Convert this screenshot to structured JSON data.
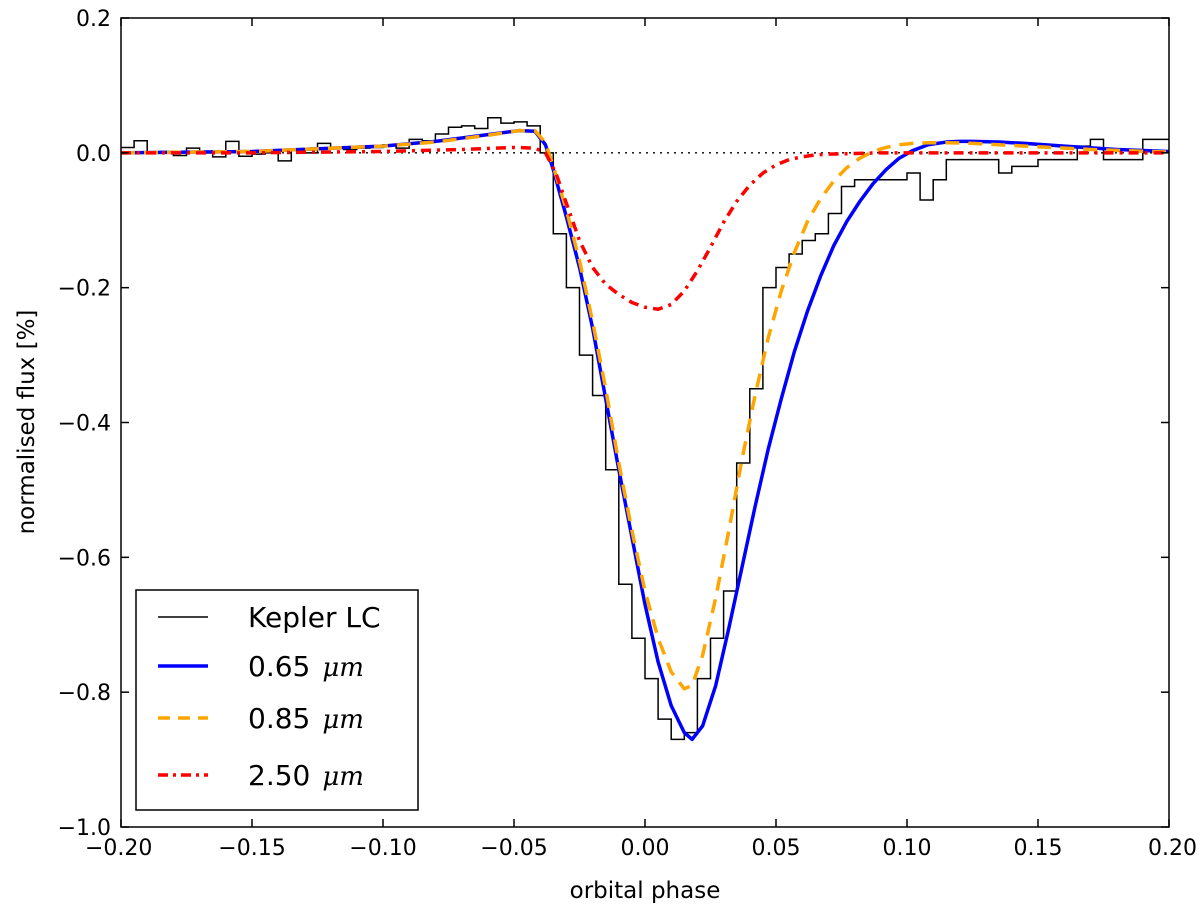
{
  "chart_data": {
    "type": "line",
    "title": "",
    "xlabel": "orbital phase",
    "ylabel": "normalised flux [%]",
    "xlim": [
      -0.2,
      0.2
    ],
    "ylim": [
      -1.0,
      0.2
    ],
    "grid": false,
    "legend_position": "lower-left",
    "x_ticks": [
      -0.2,
      -0.15,
      -0.1,
      -0.05,
      0.0,
      0.05,
      0.1,
      0.15,
      0.2
    ],
    "x_tick_labels": [
      "−0.20",
      "−0.15",
      "−0.10",
      "−0.05",
      "0.00",
      "0.05",
      "0.10",
      "0.15",
      "0.20"
    ],
    "y_ticks": [
      -1.0,
      -0.8,
      -0.6,
      -0.4,
      -0.2,
      0.0,
      0.2
    ],
    "y_tick_labels": [
      "−1.0",
      "−0.8",
      "−0.6",
      "−0.4",
      "−0.2",
      "0.0",
      "0.2"
    ],
    "reference_line": {
      "y": 0.0,
      "style": "dotted"
    },
    "kepler_lc": {
      "name": "Kepler LC",
      "color": "#000000",
      "bin_width": 0.005,
      "bin_starts": [
        -0.2,
        -0.195,
        -0.19,
        -0.185,
        -0.18,
        -0.175,
        -0.17,
        -0.165,
        -0.16,
        -0.155,
        -0.15,
        -0.145,
        -0.14,
        -0.135,
        -0.13,
        -0.125,
        -0.12,
        -0.115,
        -0.11,
        -0.105,
        -0.1,
        -0.095,
        -0.09,
        -0.085,
        -0.08,
        -0.075,
        -0.07,
        -0.065,
        -0.06,
        -0.055,
        -0.05,
        -0.045,
        -0.04,
        -0.035,
        -0.03,
        -0.025,
        -0.02,
        -0.015,
        -0.01,
        -0.005,
        0.0,
        0.005,
        0.01,
        0.015,
        0.02,
        0.025,
        0.03,
        0.035,
        0.04,
        0.045,
        0.05,
        0.055,
        0.06,
        0.065,
        0.07,
        0.075,
        0.08,
        0.085,
        0.09,
        0.095,
        0.1,
        0.105,
        0.11,
        0.115,
        0.12,
        0.125,
        0.13,
        0.135,
        0.14,
        0.145,
        0.15,
        0.155,
        0.16,
        0.165,
        0.17,
        0.175,
        0.18,
        0.185,
        0.19,
        0.195
      ],
      "values": [
        0.008,
        0.018,
        0.0,
        0.002,
        -0.004,
        0.007,
        0.0,
        -0.006,
        0.017,
        -0.005,
        -0.002,
        0.0,
        -0.012,
        0.004,
        0.0,
        0.014,
        0.008,
        0.005,
        0.007,
        0.008,
        0.012,
        0.007,
        0.02,
        0.018,
        0.028,
        0.038,
        0.04,
        0.036,
        0.052,
        0.044,
        0.046,
        0.04,
        0.0,
        -0.12,
        -0.2,
        -0.3,
        -0.36,
        -0.47,
        -0.64,
        -0.72,
        -0.78,
        -0.84,
        -0.87,
        -0.86,
        -0.78,
        -0.72,
        -0.65,
        -0.46,
        -0.35,
        -0.2,
        -0.17,
        -0.15,
        -0.13,
        -0.12,
        -0.09,
        -0.05,
        -0.04,
        -0.04,
        -0.04,
        -0.04,
        -0.03,
        -0.07,
        -0.04,
        -0.01,
        -0.01,
        -0.01,
        -0.01,
        -0.03,
        -0.02,
        -0.02,
        -0.01,
        -0.01,
        -0.01,
        0.01,
        0.02,
        -0.01,
        -0.01,
        -0.01,
        0.02,
        0.02
      ]
    },
    "series": [
      {
        "name": "0.65",
        "unit": "μm",
        "color": "#0000ff",
        "style": "solid",
        "x": [
          -0.2,
          -0.15,
          -0.1,
          -0.08,
          -0.06,
          -0.048,
          -0.042,
          -0.038,
          -0.035,
          -0.03,
          -0.025,
          -0.02,
          -0.015,
          -0.01,
          -0.005,
          0.0,
          0.005,
          0.01,
          0.015,
          0.018,
          0.022,
          0.027,
          0.032,
          0.037,
          0.042,
          0.047,
          0.052,
          0.057,
          0.062,
          0.067,
          0.072,
          0.077,
          0.082,
          0.087,
          0.092,
          0.097,
          0.102,
          0.108,
          0.115,
          0.12,
          0.125,
          0.135,
          0.145,
          0.16,
          0.18,
          0.2
        ],
        "values": [
          0.0,
          0.002,
          0.01,
          0.017,
          0.027,
          0.033,
          0.032,
          0.012,
          -0.025,
          -0.095,
          -0.17,
          -0.26,
          -0.365,
          -0.47,
          -0.57,
          -0.67,
          -0.755,
          -0.82,
          -0.86,
          -0.87,
          -0.85,
          -0.79,
          -0.705,
          -0.615,
          -0.525,
          -0.44,
          -0.365,
          -0.295,
          -0.235,
          -0.183,
          -0.138,
          -0.102,
          -0.072,
          -0.046,
          -0.025,
          -0.008,
          0.003,
          0.012,
          0.016,
          0.017,
          0.017,
          0.016,
          0.014,
          0.01,
          0.005,
          0.002
        ]
      },
      {
        "name": "0.85",
        "unit": "μm",
        "color": "#ffa500",
        "style": "dashed",
        "x": [
          -0.2,
          -0.15,
          -0.1,
          -0.08,
          -0.06,
          -0.048,
          -0.042,
          -0.038,
          -0.035,
          -0.03,
          -0.025,
          -0.02,
          -0.015,
          -0.01,
          -0.005,
          0.0,
          0.005,
          0.01,
          0.015,
          0.018,
          0.022,
          0.027,
          0.032,
          0.037,
          0.042,
          0.047,
          0.052,
          0.057,
          0.062,
          0.067,
          0.072,
          0.077,
          0.082,
          0.087,
          0.092,
          0.097,
          0.102,
          0.108,
          0.115,
          0.125,
          0.135,
          0.15,
          0.17,
          0.2
        ],
        "values": [
          0.0,
          0.002,
          0.01,
          0.016,
          0.026,
          0.033,
          0.033,
          0.015,
          -0.02,
          -0.085,
          -0.16,
          -0.25,
          -0.35,
          -0.46,
          -0.56,
          -0.65,
          -0.72,
          -0.77,
          -0.795,
          -0.79,
          -0.745,
          -0.66,
          -0.56,
          -0.455,
          -0.36,
          -0.275,
          -0.205,
          -0.148,
          -0.102,
          -0.068,
          -0.042,
          -0.022,
          -0.008,
          0.002,
          0.008,
          0.012,
          0.014,
          0.015,
          0.015,
          0.014,
          0.012,
          0.009,
          0.005,
          0.001
        ]
      },
      {
        "name": "2.50",
        "unit": "μm",
        "color": "#ff0000",
        "style": "dashdot",
        "x": [
          -0.2,
          -0.15,
          -0.1,
          -0.07,
          -0.05,
          -0.042,
          -0.038,
          -0.034,
          -0.03,
          -0.025,
          -0.02,
          -0.015,
          -0.01,
          -0.005,
          0.0,
          0.005,
          0.01,
          0.015,
          0.02,
          0.025,
          0.03,
          0.035,
          0.04,
          0.045,
          0.05,
          0.055,
          0.06,
          0.065,
          0.07,
          0.08,
          0.09,
          0.1,
          0.12,
          0.15,
          0.2
        ],
        "values": [
          0.0,
          0.0,
          0.002,
          0.005,
          0.008,
          0.007,
          0.0,
          -0.03,
          -0.075,
          -0.13,
          -0.17,
          -0.195,
          -0.21,
          -0.222,
          -0.229,
          -0.232,
          -0.225,
          -0.205,
          -0.175,
          -0.14,
          -0.103,
          -0.072,
          -0.048,
          -0.03,
          -0.018,
          -0.01,
          -0.006,
          -0.003,
          -0.002,
          -0.001,
          0.0,
          0.0,
          0.0,
          0.0,
          0.0
        ]
      }
    ]
  },
  "legend": {
    "items": [
      {
        "label": "Kepler LC",
        "unit": ""
      },
      {
        "label": "0.65",
        "unit": "μm"
      },
      {
        "label": "0.85",
        "unit": "μm"
      },
      {
        "label": "2.50",
        "unit": "μm"
      }
    ]
  }
}
